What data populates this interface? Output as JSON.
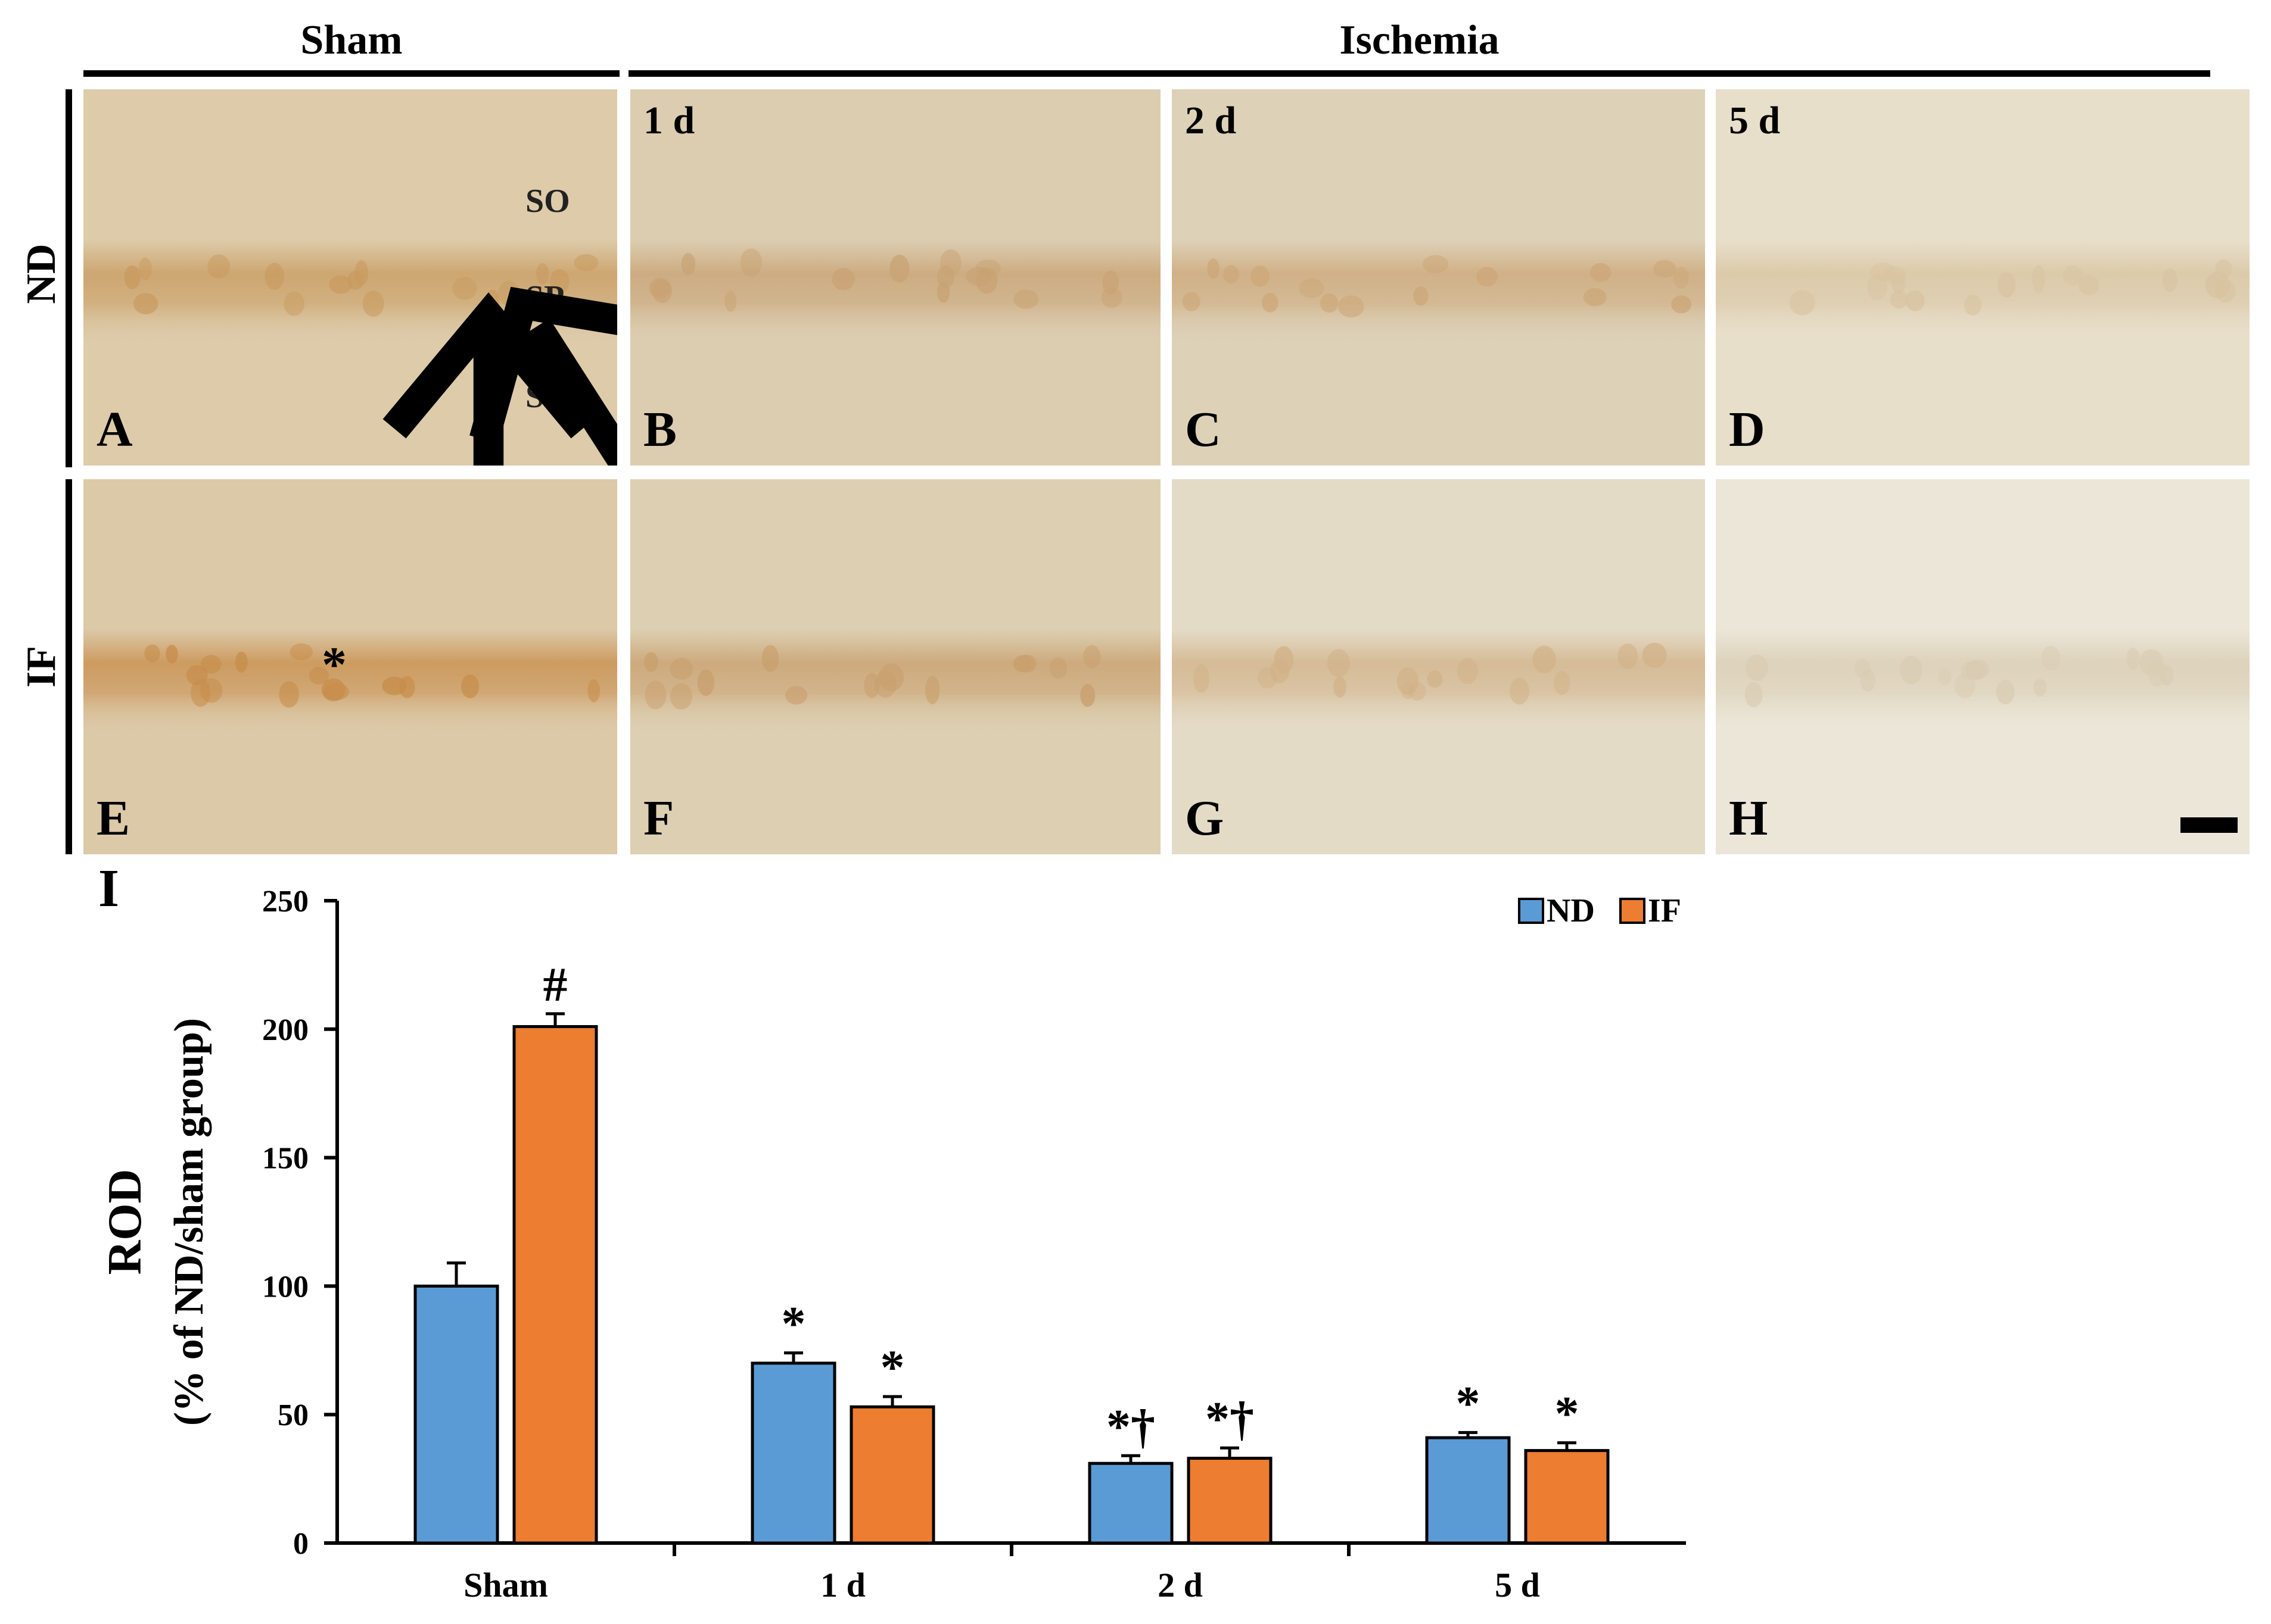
{
  "figure": {
    "headers": {
      "sham": "Sham",
      "ischemia": "Ischemia"
    },
    "rows": [
      "ND",
      "IF"
    ],
    "panels": [
      {
        "id": "A",
        "label": "A",
        "time": "",
        "bg": "#ddcbaa",
        "band": "#c89a5e",
        "annotations": [
          "SO",
          "SP",
          "SR"
        ],
        "marks": "arrows"
      },
      {
        "id": "B",
        "label": "B",
        "time": "1 d",
        "bg": "#dccdb1",
        "band": "#c8a172"
      },
      {
        "id": "C",
        "label": "C",
        "time": "2 d",
        "bg": "#ddd1b8",
        "band": "#cca677"
      },
      {
        "id": "D",
        "label": "D",
        "time": "5 d",
        "bg": "#e8dfcb",
        "band": "#d8c3a0"
      },
      {
        "id": "E",
        "label": "E",
        "time": "",
        "bg": "#dcc9a8",
        "band": "#c78c49",
        "marks": "asterisk",
        "asterisk": "*"
      },
      {
        "id": "F",
        "label": "F",
        "time": "",
        "bg": "#ddcfb2",
        "band": "#c89e6c"
      },
      {
        "id": "G",
        "label": "G",
        "time": "",
        "bg": "#e4dbc7",
        "band": "#d1b187"
      },
      {
        "id": "H",
        "label": "H",
        "time": "",
        "bg": "#ebe6d8",
        "band": "#d9ccb2",
        "scalebar": true
      }
    ]
  },
  "chart_panel_label": "I",
  "chart_data": {
    "type": "bar",
    "categories": [
      "Sham",
      "1 d",
      "2 d",
      "5 d"
    ],
    "series": [
      {
        "name": "ND",
        "color": "#5b9bd5",
        "values": [
          100,
          70,
          31,
          41
        ],
        "errors": [
          9,
          4,
          3,
          2
        ]
      },
      {
        "name": "IF",
        "color": "#ed7d31",
        "values": [
          201,
          53,
          33,
          36
        ],
        "errors": [
          5,
          4,
          4,
          3
        ]
      }
    ],
    "significance": [
      [
        "",
        "#"
      ],
      [
        "*",
        "*"
      ],
      [
        "*†",
        "*†"
      ],
      [
        "*",
        "*"
      ]
    ],
    "ylabel": "ROD",
    "ylabel2": "(% of ND/sham group)",
    "ylim": [
      0,
      250
    ],
    "yticks": [
      0,
      50,
      100,
      150,
      200,
      250
    ],
    "legend_position": "top-right",
    "grid": false
  }
}
